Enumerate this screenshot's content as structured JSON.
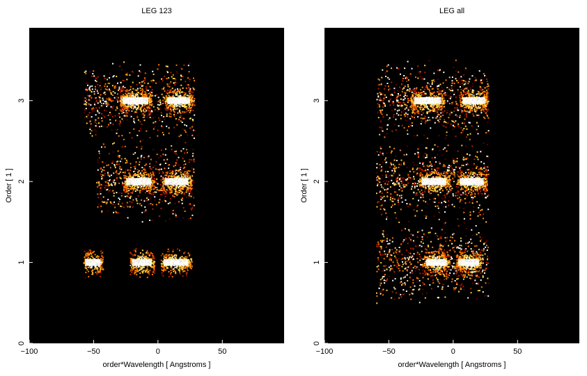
{
  "chart_data": [
    {
      "type": "heatmap",
      "title": "LEG 123",
      "xlabel": "order*Wavelength [ Angstroms ]",
      "ylabel": "Order [ 1 ]",
      "xlim": [
        -100,
        98
      ],
      "ylim": [
        0,
        3.9
      ],
      "xticks": [
        -100,
        -50,
        0,
        50
      ],
      "yticks": [
        0,
        1,
        2,
        3
      ],
      "background": "#000000",
      "colormap": [
        "#000000",
        "#5a0000",
        "#b02000",
        "#ff7a00",
        "#ffd040",
        "#ffffff"
      ],
      "features": [
        {
          "order": 3,
          "x": [
            -58,
            28
          ],
          "kind": "scatter"
        },
        {
          "order": 3,
          "x": [
            -30,
            -5
          ],
          "kind": "bright"
        },
        {
          "order": 3,
          "x": [
            5,
            27
          ],
          "kind": "bright"
        },
        {
          "order": 2,
          "x": [
            -48,
            28
          ],
          "kind": "scatter"
        },
        {
          "order": 2,
          "x": [
            -27,
            -3
          ],
          "kind": "bright"
        },
        {
          "order": 2,
          "x": [
            3,
            26
          ],
          "kind": "bright"
        },
        {
          "order": 1,
          "x": [
            -58,
            -43
          ],
          "kind": "bright"
        },
        {
          "order": 1,
          "x": [
            -22,
            -3
          ],
          "kind": "bright"
        },
        {
          "order": 1,
          "x": [
            2,
            26
          ],
          "kind": "bright"
        }
      ]
    },
    {
      "type": "heatmap",
      "title": "LEG all",
      "xlabel": "order*Wavelength [ Angstroms ]",
      "ylabel": "Order [ 1 ]",
      "xlim": [
        -100,
        98
      ],
      "ylim": [
        0,
        3.9
      ],
      "xticks": [
        -100,
        -50,
        0,
        50
      ],
      "yticks": [
        0,
        1,
        2,
        3
      ],
      "background": "#000000",
      "colormap": [
        "#000000",
        "#5a0000",
        "#b02000",
        "#ff7a00",
        "#ffd040",
        "#ffffff"
      ],
      "features": [
        {
          "order": 3,
          "x": [
            -60,
            27
          ],
          "kind": "scatter"
        },
        {
          "order": 3,
          "x": [
            -33,
            -7
          ],
          "kind": "bright"
        },
        {
          "order": 3,
          "x": [
            5,
            27
          ],
          "kind": "bright"
        },
        {
          "order": 2,
          "x": [
            -60,
            27
          ],
          "kind": "scatter"
        },
        {
          "order": 2,
          "x": [
            -27,
            -3
          ],
          "kind": "bright"
        },
        {
          "order": 2,
          "x": [
            3,
            26
          ],
          "kind": "bright"
        },
        {
          "order": 1,
          "x": [
            -60,
            27
          ],
          "kind": "scatter"
        },
        {
          "order": 1,
          "x": [
            -23,
            -3
          ],
          "kind": "bright"
        },
        {
          "order": 1,
          "x": [
            2,
            22
          ],
          "kind": "bright"
        }
      ]
    }
  ]
}
